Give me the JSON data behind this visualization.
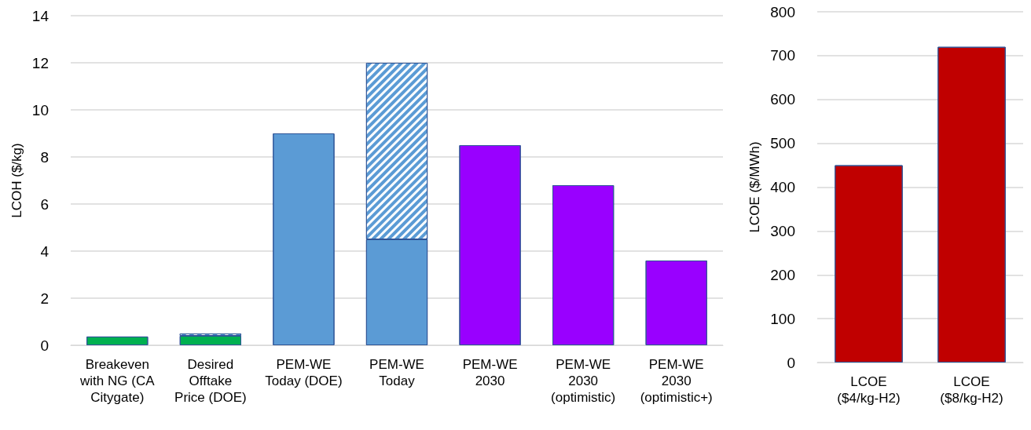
{
  "chart_data": [
    {
      "type": "bar",
      "ylabel": "LCOH ($/kg)",
      "stacked": true,
      "grid": "y",
      "categories": [
        "Breakeven\nwith NG (CA\nCitygate)",
        "Desired\nOfftake\nPrice (DOE)",
        "PEM-WE\nToday (DOE)",
        "PEM-WE\nToday",
        "PEM-WE\n2030",
        "PEM-WE\n2030\n(optimistic)",
        "PEM-WE\n2030\n(optimistic+)"
      ],
      "series": [
        {
          "colors": [
            "#00b050",
            "#00b050",
            "#5b9bd5",
            "#5b9bd5",
            "#9900ff",
            "#9900ff",
            "#9900ff"
          ],
          "values": [
            0.37,
            0.4,
            9,
            4.5,
            8.5,
            6.8,
            3.6
          ]
        },
        {
          "color": "#5b9bd5",
          "values": [
            null,
            0.1,
            null,
            7.5,
            null,
            null,
            null
          ]
        }
      ],
      "ylim": [
        0,
        14
      ],
      "yticks": [
        0,
        2,
        4,
        6,
        8,
        10,
        12,
        14
      ]
    },
    {
      "type": "bar",
      "ylabel": "LCOE ($/MWh)",
      "grid": "y",
      "categories": [
        "LCOE\n($4/kg-H2)",
        "LCOE\n($8/kg-H2)"
      ],
      "series": [
        {
          "color": "#c00000",
          "values": [
            450,
            720
          ]
        }
      ],
      "ylim": [
        0,
        800
      ],
      "yticks": [
        0,
        100,
        200,
        300,
        400,
        500,
        600,
        700,
        800
      ]
    }
  ]
}
